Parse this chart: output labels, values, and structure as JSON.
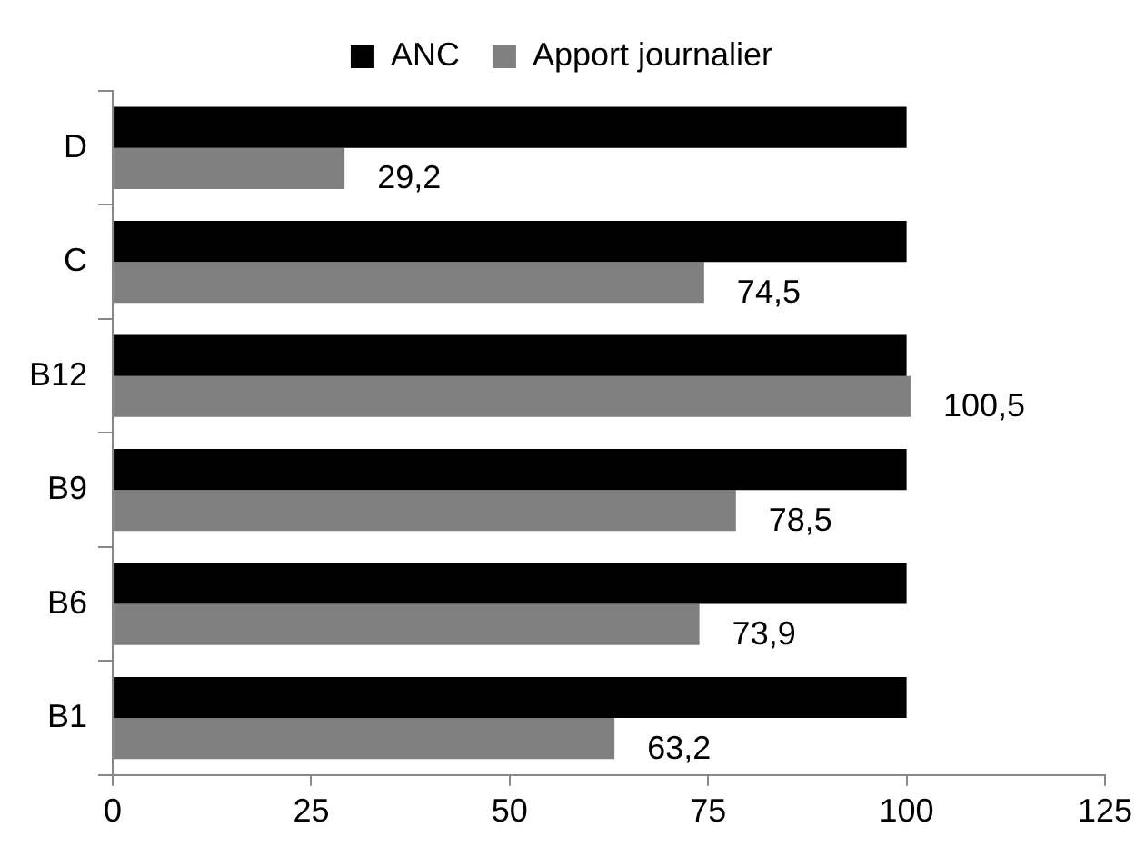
{
  "chart_data": {
    "type": "bar",
    "orientation": "horizontal",
    "categories": [
      "D",
      "C",
      "B12",
      "B9",
      "B6",
      "B1"
    ],
    "series": [
      {
        "name": "ANC",
        "color": "#000000",
        "values": [
          100,
          100,
          100,
          100,
          100,
          100
        ]
      },
      {
        "name": "Apport journalier",
        "color": "#808080",
        "values": [
          29.2,
          74.5,
          100.5,
          78.5,
          73.9,
          63.2
        ],
        "value_labels": [
          "29,2",
          "74,5",
          "100,5",
          "78,5",
          "73,9",
          "63,2"
        ]
      }
    ],
    "xlim": [
      0,
      125
    ],
    "xticks": [
      0,
      25,
      50,
      75,
      100,
      125
    ],
    "grid": false,
    "legend": "top"
  }
}
